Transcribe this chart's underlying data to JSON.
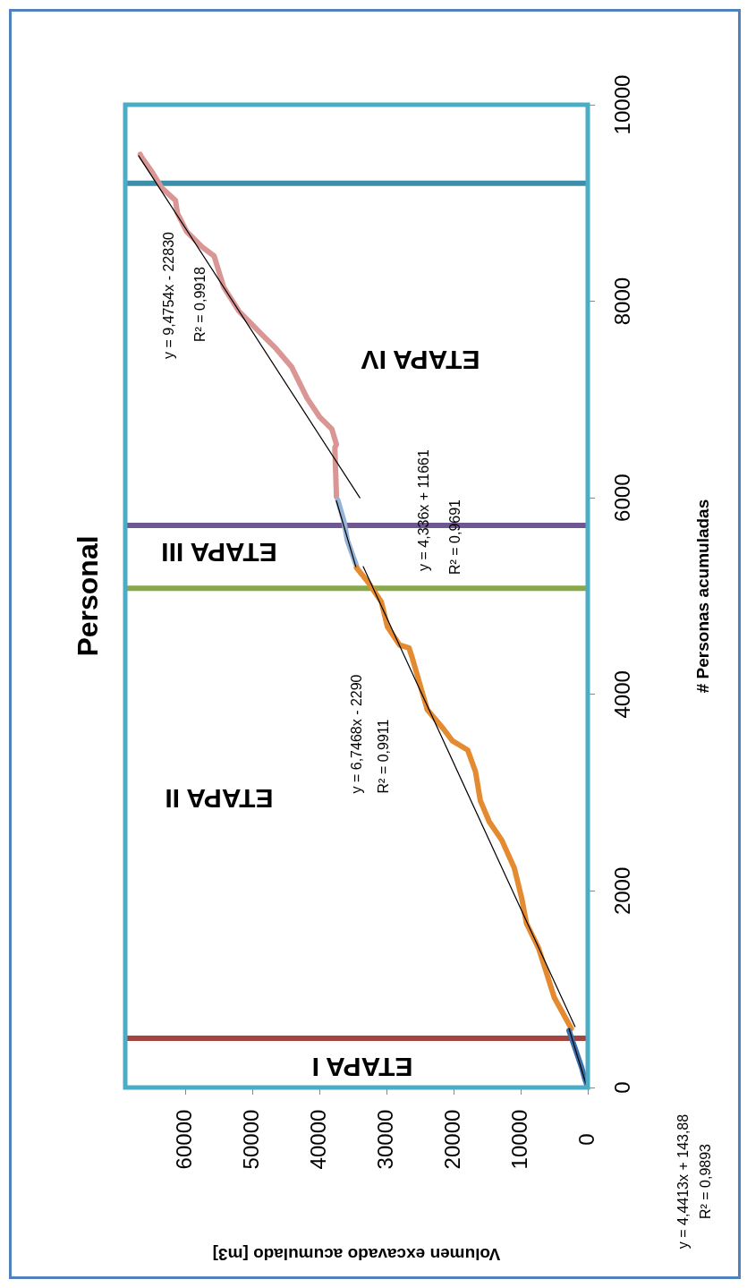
{
  "chart_data": {
    "type": "line",
    "title": "Personal",
    "xlabel": "Volumen excavado acumulado [m3]",
    "ylabel": "# Personas acumuladas",
    "xlim": [
      69000,
      0
    ],
    "xticks": [
      0,
      10000,
      20000,
      30000,
      40000,
      50000,
      60000
    ],
    "ylim": [
      0,
      10000
    ],
    "yticks": [
      0,
      2000,
      4000,
      6000,
      8000,
      10000
    ],
    "grid": false,
    "marker": "none",
    "line_style": "solid",
    "series": [
      {
        "color": "#3f6fa8",
        "x": [
          0,
          500,
          900,
          1400,
          1900,
          2400,
          2800
        ],
        "values": [
          0,
          100,
          200,
          300,
          400,
          500,
          580
        ]
      },
      {
        "color": "#e48a30",
        "x": [
          2460,
          4990,
          6150,
          7350,
          9140,
          9840,
          10960,
          12830,
          14700,
          16040,
          16750,
          17910,
          20200,
          21590,
          23930,
          24870,
          26200,
          26660,
          28070,
          29890,
          30800,
          32650,
          34490
        ],
        "values": [
          601,
          915,
          1166,
          1420,
          1669,
          1922,
          2234,
          2517,
          2705,
          2923,
          3215,
          3433,
          3528,
          3654,
          3843,
          4062,
          4376,
          4472,
          4502,
          4690,
          4942,
          5130,
          5287
        ]
      },
      {
        "color": "#95b3d7",
        "x": [
          34490,
          35880,
          36360,
          37300
        ],
        "values": [
          5306,
          5570,
          5758,
          5978
        ]
      },
      {
        "color": "#d99694",
        "x": [
          37490,
          37730,
          37490,
          38180,
          40030,
          41870,
          44170,
          46480,
          48800,
          50170,
          52000,
          54320,
          55750,
          57540,
          59850,
          61230,
          61500,
          63540,
          64920,
          66540,
          66760
        ],
        "values": [
          6011,
          6512,
          6543,
          6700,
          6826,
          7014,
          7331,
          7516,
          7674,
          7769,
          7896,
          8145,
          8461,
          8553,
          8711,
          8898,
          9025,
          9153,
          9308,
          9464,
          9495
        ]
      },
      {
        "color": "#000000",
        "x": [
          100,
          2800
        ],
        "values": [
          0,
          600
        ]
      },
      {
        "color": "#000000",
        "x": [
          1900,
          33500
        ],
        "values": [
          620,
          5300
        ]
      },
      {
        "color": "#000000",
        "x": [
          34600,
          37500
        ],
        "values": [
          5300,
          5970
        ]
      },
      {
        "color": "#000000",
        "x": [
          34000,
          67000
        ],
        "values": [
          6000,
          9480
        ]
      }
    ],
    "ref_lines": [
      {
        "axis": "y",
        "value": 500,
        "color": "#a5433f"
      },
      {
        "axis": "y",
        "value": 5080,
        "color": "#88a84a"
      },
      {
        "axis": "y",
        "value": 5720,
        "color": "#6f5792"
      },
      {
        "axis": "y",
        "value": 9200,
        "color": "#3d8ea8"
      }
    ],
    "annotations": [
      "ETAPA I",
      "ETAPA II",
      "ETAPA III",
      "ETAPA IV",
      "y = 6,7468x - 2290",
      "R² = 0,9911",
      "y = 4,336x + 11661",
      "R² = 0,9691",
      "y = 9,4754x - 22830",
      "R² = 0,9918",
      "y = 4,4413x + 143,88",
      "R² = 0,9893"
    ]
  }
}
